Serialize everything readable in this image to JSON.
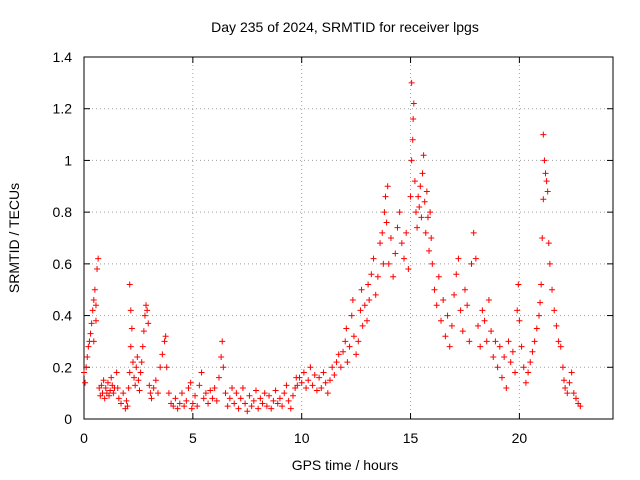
{
  "chart_data": {
    "type": "scatter",
    "title": "Day 235 of 2024, SRMTID for receiver lpgs",
    "xlabel": "GPS time / hours",
    "ylabel": "SRMTID / TECUs",
    "xlim": [
      0,
      24.3
    ],
    "ylim": [
      0,
      1.4
    ],
    "x_ticks": [
      0,
      5,
      10,
      15,
      20
    ],
    "x_tick_labels": [
      "0",
      "5",
      "10",
      "15",
      "20"
    ],
    "y_ticks": [
      0,
      0.2,
      0.4,
      0.6,
      0.8,
      1,
      1.2,
      1.4
    ],
    "y_tick_labels": [
      "0",
      "0.2",
      "0.4",
      "0.6",
      "0.8",
      "1",
      "1.2",
      "1.4"
    ],
    "grid": true,
    "marker": "plus",
    "marker_color": "#ff0000",
    "series": [
      {
        "name": "SRMTID",
        "points": [
          [
            0.0,
            0.18
          ],
          [
            0.05,
            0.14
          ],
          [
            0.1,
            0.2
          ],
          [
            0.15,
            0.24
          ],
          [
            0.2,
            0.28
          ],
          [
            0.25,
            0.3
          ],
          [
            0.3,
            0.33
          ],
          [
            0.35,
            0.37
          ],
          [
            0.4,
            0.42
          ],
          [
            0.45,
            0.46
          ],
          [
            0.5,
            0.5
          ],
          [
            0.55,
            0.44
          ],
          [
            0.6,
            0.58
          ],
          [
            0.65,
            0.62
          ],
          [
            0.55,
            0.38
          ],
          [
            0.45,
            0.3
          ],
          [
            0.7,
            0.12
          ],
          [
            0.75,
            0.09
          ],
          [
            0.8,
            0.13
          ],
          [
            0.85,
            0.1
          ],
          [
            0.9,
            0.15
          ],
          [
            0.95,
            0.08
          ],
          [
            1.0,
            0.12
          ],
          [
            1.05,
            0.1
          ],
          [
            1.1,
            0.14
          ],
          [
            1.15,
            0.09
          ],
          [
            1.2,
            0.11
          ],
          [
            1.25,
            0.16
          ],
          [
            1.3,
            0.13
          ],
          [
            1.35,
            0.1
          ],
          [
            1.4,
            0.12
          ],
          [
            1.5,
            0.18
          ],
          [
            1.55,
            0.12
          ],
          [
            1.6,
            0.08
          ],
          [
            1.7,
            0.06
          ],
          [
            1.8,
            0.1
          ],
          [
            1.9,
            0.04
          ],
          [
            1.95,
            0.07
          ],
          [
            2.0,
            0.05
          ],
          [
            2.05,
            0.12
          ],
          [
            2.1,
            0.18
          ],
          [
            2.15,
            0.28
          ],
          [
            2.2,
            0.35
          ],
          [
            2.15,
            0.42
          ],
          [
            2.1,
            0.52
          ],
          [
            2.25,
            0.22
          ],
          [
            2.3,
            0.16
          ],
          [
            2.35,
            0.13
          ],
          [
            2.4,
            0.2
          ],
          [
            2.45,
            0.24
          ],
          [
            2.5,
            0.15
          ],
          [
            2.55,
            0.11
          ],
          [
            2.6,
            0.18
          ],
          [
            2.65,
            0.22
          ],
          [
            2.7,
            0.28
          ],
          [
            2.75,
            0.34
          ],
          [
            2.8,
            0.4
          ],
          [
            2.85,
            0.44
          ],
          [
            2.9,
            0.42
          ],
          [
            2.95,
            0.37
          ],
          [
            3.0,
            0.13
          ],
          [
            3.05,
            0.1
          ],
          [
            3.1,
            0.08
          ],
          [
            3.2,
            0.12
          ],
          [
            3.3,
            0.15
          ],
          [
            3.4,
            0.1
          ],
          [
            3.5,
            0.2
          ],
          [
            3.6,
            0.25
          ],
          [
            3.7,
            0.3
          ],
          [
            3.75,
            0.32
          ],
          [
            3.8,
            0.2
          ],
          [
            3.9,
            0.1
          ],
          [
            4.0,
            0.06
          ],
          [
            4.1,
            0.05
          ],
          [
            4.2,
            0.08
          ],
          [
            4.3,
            0.04
          ],
          [
            4.4,
            0.06
          ],
          [
            4.5,
            0.1
          ],
          [
            4.6,
            0.05
          ],
          [
            4.7,
            0.07
          ],
          [
            4.8,
            0.12
          ],
          [
            4.9,
            0.14
          ],
          [
            4.95,
            0.04
          ],
          [
            5.0,
            0.06
          ],
          [
            5.1,
            0.09
          ],
          [
            5.2,
            0.05
          ],
          [
            5.3,
            0.13
          ],
          [
            5.4,
            0.18
          ],
          [
            5.5,
            0.08
          ],
          [
            5.6,
            0.1
          ],
          [
            5.7,
            0.06
          ],
          [
            5.8,
            0.11
          ],
          [
            5.9,
            0.08
          ],
          [
            6.0,
            0.12
          ],
          [
            6.1,
            0.07
          ],
          [
            6.2,
            0.16
          ],
          [
            6.3,
            0.24
          ],
          [
            6.35,
            0.3
          ],
          [
            6.4,
            0.2
          ],
          [
            6.5,
            0.1
          ],
          [
            6.6,
            0.05
          ],
          [
            6.7,
            0.08
          ],
          [
            6.8,
            0.12
          ],
          [
            6.9,
            0.06
          ],
          [
            7.0,
            0.1
          ],
          [
            7.1,
            0.04
          ],
          [
            7.2,
            0.08
          ],
          [
            7.3,
            0.12
          ],
          [
            7.4,
            0.06
          ],
          [
            7.5,
            0.03
          ],
          [
            7.6,
            0.09
          ],
          [
            7.7,
            0.05
          ],
          [
            7.8,
            0.07
          ],
          [
            7.9,
            0.11
          ],
          [
            8.0,
            0.04
          ],
          [
            8.1,
            0.08
          ],
          [
            8.2,
            0.06
          ],
          [
            8.3,
            0.1
          ],
          [
            8.4,
            0.05
          ],
          [
            8.5,
            0.09
          ],
          [
            8.6,
            0.04
          ],
          [
            8.7,
            0.07
          ],
          [
            8.8,
            0.11
          ],
          [
            8.9,
            0.06
          ],
          [
            9.0,
            0.08
          ],
          [
            9.1,
            0.05
          ],
          [
            9.2,
            0.1
          ],
          [
            9.3,
            0.13
          ],
          [
            9.4,
            0.07
          ],
          [
            9.5,
            0.04
          ],
          [
            9.6,
            0.09
          ],
          [
            9.7,
            0.12
          ],
          [
            9.75,
            0.16
          ],
          [
            9.8,
            0.13
          ],
          [
            9.9,
            0.16
          ],
          [
            10.0,
            0.14
          ],
          [
            10.1,
            0.18
          ],
          [
            10.2,
            0.12
          ],
          [
            10.3,
            0.15
          ],
          [
            10.4,
            0.2
          ],
          [
            10.5,
            0.13
          ],
          [
            10.6,
            0.17
          ],
          [
            10.7,
            0.11
          ],
          [
            10.8,
            0.16
          ],
          [
            10.9,
            0.12
          ],
          [
            11.0,
            0.18
          ],
          [
            11.1,
            0.14
          ],
          [
            11.2,
            0.1
          ],
          [
            11.3,
            0.15
          ],
          [
            11.4,
            0.2
          ],
          [
            11.5,
            0.17
          ],
          [
            11.6,
            0.22
          ],
          [
            11.7,
            0.25
          ],
          [
            11.8,
            0.2
          ],
          [
            11.9,
            0.26
          ],
          [
            12.0,
            0.3
          ],
          [
            12.05,
            0.35
          ],
          [
            12.1,
            0.22
          ],
          [
            12.2,
            0.28
          ],
          [
            12.3,
            0.4
          ],
          [
            12.35,
            0.46
          ],
          [
            12.4,
            0.32
          ],
          [
            12.5,
            0.25
          ],
          [
            12.6,
            0.3
          ],
          [
            12.7,
            0.42
          ],
          [
            12.75,
            0.5
          ],
          [
            12.8,
            0.36
          ],
          [
            12.9,
            0.44
          ],
          [
            13.0,
            0.38
          ],
          [
            13.05,
            0.52
          ],
          [
            13.1,
            0.46
          ],
          [
            13.2,
            0.56
          ],
          [
            13.3,
            0.62
          ],
          [
            13.4,
            0.48
          ],
          [
            13.5,
            0.55
          ],
          [
            13.6,
            0.68
          ],
          [
            13.7,
            0.72
          ],
          [
            13.75,
            0.6
          ],
          [
            13.8,
            0.8
          ],
          [
            13.85,
            0.86
          ],
          [
            13.9,
            0.76
          ],
          [
            13.95,
            0.9
          ],
          [
            14.0,
            0.6
          ],
          [
            14.1,
            0.7
          ],
          [
            14.2,
            0.55
          ],
          [
            14.3,
            0.64
          ],
          [
            14.4,
            0.74
          ],
          [
            14.5,
            0.8
          ],
          [
            14.6,
            0.68
          ],
          [
            14.7,
            0.62
          ],
          [
            14.8,
            0.72
          ],
          [
            14.9,
            0.58
          ],
          [
            15.0,
            0.86
          ],
          [
            15.05,
            1.0
          ],
          [
            15.1,
            1.08
          ],
          [
            15.12,
            1.16
          ],
          [
            15.15,
            1.22
          ],
          [
            15.05,
            1.3
          ],
          [
            15.2,
            0.92
          ],
          [
            15.25,
            0.8
          ],
          [
            15.3,
            0.74
          ],
          [
            15.35,
            0.86
          ],
          [
            15.4,
            0.82
          ],
          [
            15.45,
            0.9
          ],
          [
            15.5,
            0.78
          ],
          [
            15.55,
            0.95
          ],
          [
            15.6,
            1.02
          ],
          [
            15.65,
            0.84
          ],
          [
            15.7,
            0.72
          ],
          [
            15.75,
            0.88
          ],
          [
            15.8,
            0.78
          ],
          [
            15.85,
            0.65
          ],
          [
            15.9,
            0.8
          ],
          [
            15.95,
            0.7
          ],
          [
            16.0,
            0.6
          ],
          [
            16.1,
            0.5
          ],
          [
            16.2,
            0.44
          ],
          [
            16.3,
            0.55
          ],
          [
            16.4,
            0.38
          ],
          [
            16.5,
            0.46
          ],
          [
            16.6,
            0.32
          ],
          [
            16.7,
            0.4
          ],
          [
            16.8,
            0.28
          ],
          [
            16.9,
            0.36
          ],
          [
            17.0,
            0.48
          ],
          [
            17.1,
            0.56
          ],
          [
            17.2,
            0.62
          ],
          [
            17.3,
            0.42
          ],
          [
            17.4,
            0.34
          ],
          [
            17.5,
            0.5
          ],
          [
            17.6,
            0.44
          ],
          [
            17.7,
            0.3
          ],
          [
            17.8,
            0.6
          ],
          [
            17.9,
            0.72
          ],
          [
            18.0,
            0.62
          ],
          [
            18.1,
            0.36
          ],
          [
            18.2,
            0.28
          ],
          [
            18.3,
            0.42
          ],
          [
            18.4,
            0.38
          ],
          [
            18.5,
            0.3
          ],
          [
            18.6,
            0.46
          ],
          [
            18.7,
            0.34
          ],
          [
            18.8,
            0.24
          ],
          [
            18.9,
            0.3
          ],
          [
            19.0,
            0.2
          ],
          [
            19.1,
            0.28
          ],
          [
            19.2,
            0.16
          ],
          [
            19.3,
            0.24
          ],
          [
            19.4,
            0.12
          ],
          [
            19.5,
            0.3
          ],
          [
            19.6,
            0.22
          ],
          [
            19.7,
            0.26
          ],
          [
            19.8,
            0.18
          ],
          [
            19.9,
            0.42
          ],
          [
            19.95,
            0.52
          ],
          [
            20.0,
            0.38
          ],
          [
            20.1,
            0.28
          ],
          [
            20.2,
            0.2
          ],
          [
            20.3,
            0.14
          ],
          [
            20.4,
            0.18
          ],
          [
            20.5,
            0.22
          ],
          [
            20.6,
            0.26
          ],
          [
            20.7,
            0.3
          ],
          [
            20.8,
            0.35
          ],
          [
            20.9,
            0.4
          ],
          [
            20.95,
            0.45
          ],
          [
            21.0,
            0.52
          ],
          [
            21.05,
            0.7
          ],
          [
            21.1,
            0.85
          ],
          [
            21.15,
            1.0
          ],
          [
            21.1,
            1.1
          ],
          [
            21.2,
            0.95
          ],
          [
            21.25,
            0.92
          ],
          [
            21.3,
            0.88
          ],
          [
            21.35,
            0.68
          ],
          [
            21.4,
            0.6
          ],
          [
            21.5,
            0.5
          ],
          [
            21.6,
            0.42
          ],
          [
            21.7,
            0.36
          ],
          [
            21.8,
            0.3
          ],
          [
            21.9,
            0.28
          ],
          [
            22.0,
            0.2
          ],
          [
            22.05,
            0.15
          ],
          [
            22.1,
            0.12
          ],
          [
            22.2,
            0.1
          ],
          [
            22.3,
            0.14
          ],
          [
            22.4,
            0.18
          ],
          [
            22.5,
            0.1
          ],
          [
            22.6,
            0.08
          ],
          [
            22.7,
            0.06
          ],
          [
            22.8,
            0.05
          ]
        ]
      }
    ]
  }
}
